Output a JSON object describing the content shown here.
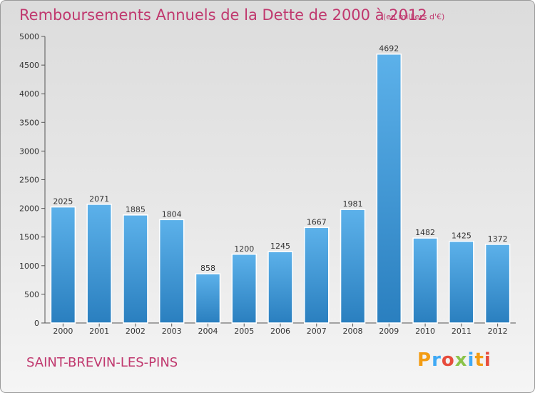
{
  "title": "Remboursements Annuels de la Dette de 2000 à 2012",
  "subtitle": "(en milliers d'€)",
  "city": "SAINT-BREVIN-LES-PINS",
  "logo": {
    "letters": [
      "P",
      "r",
      "o",
      "x",
      "i",
      "t",
      "i"
    ],
    "colors": [
      "#f39c12",
      "#3fa9f5",
      "#e74c3c",
      "#8bc34a",
      "#3fa9f5",
      "#f39c12",
      "#e74c3c"
    ]
  },
  "colors": {
    "accent": "#c0386e",
    "bar_top": "#5cb1ea",
    "bar_bottom": "#2a7fbf"
  },
  "chart_data": {
    "type": "bar",
    "title": "Remboursements Annuels de la Dette de 2000 à 2012",
    "categories": [
      "2000",
      "2001",
      "2002",
      "2003",
      "2004",
      "2005",
      "2006",
      "2007",
      "2008",
      "2009",
      "2010",
      "2011",
      "2012"
    ],
    "values": [
      2025,
      2071,
      1885,
      1804,
      858,
      1200,
      1245,
      1667,
      1981,
      4692,
      1482,
      1425,
      1372
    ],
    "y_ticks": [
      0,
      500,
      1000,
      1500,
      2000,
      2500,
      3000,
      3500,
      4000,
      4500,
      5000
    ],
    "ylim": [
      0,
      5000
    ],
    "grid": false,
    "legend": "none"
  }
}
